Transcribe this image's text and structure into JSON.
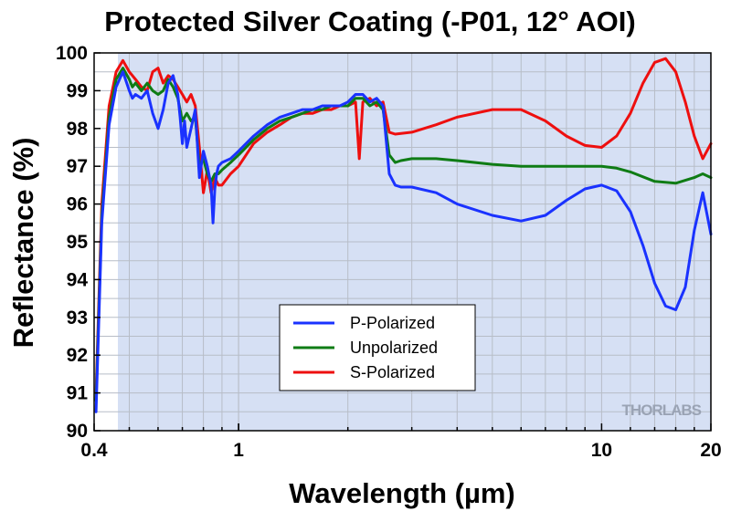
{
  "chart_data": {
    "type": "line",
    "title": "Protected Silver Coating (-P01, 12° AOI)",
    "xlabel": "Wavelength (µm)",
    "ylabel": "Reflectance (%)",
    "x_scale": "log",
    "xlim": [
      0.4,
      20
    ],
    "ylim": [
      90,
      100
    ],
    "x_tick_labels": [
      "0.4",
      "1",
      "10",
      "20"
    ],
    "x_tick_values": [
      0.4,
      1,
      10,
      20
    ],
    "y_tick_labels": [
      "90",
      "91",
      "92",
      "93",
      "94",
      "95",
      "96",
      "97",
      "98",
      "99",
      "100"
    ],
    "y_tick_values": [
      90,
      91,
      92,
      93,
      94,
      95,
      96,
      97,
      98,
      99,
      100
    ],
    "grid": true,
    "legend_position": "lower-center",
    "background_color": "#d6e0f4",
    "watermark": "THORLABS",
    "series": [
      {
        "name": "P-Polarized",
        "color": "#1a32ff",
        "x": [
          0.405,
          0.42,
          0.44,
          0.46,
          0.48,
          0.5,
          0.51,
          0.52,
          0.54,
          0.56,
          0.58,
          0.6,
          0.62,
          0.64,
          0.66,
          0.68,
          0.69,
          0.7,
          0.71,
          0.72,
          0.74,
          0.76,
          0.78,
          0.8,
          0.82,
          0.84,
          0.85,
          0.86,
          0.87,
          0.88,
          0.9,
          0.95,
          1.0,
          1.1,
          1.2,
          1.3,
          1.4,
          1.5,
          1.6,
          1.7,
          1.8,
          1.9,
          2.0,
          2.1,
          2.2,
          2.3,
          2.4,
          2.5,
          2.6,
          2.7,
          2.8,
          2.9,
          3.0,
          3.5,
          4.0,
          5.0,
          6.0,
          7.0,
          8.0,
          9.0,
          10.0,
          11.0,
          12.0,
          13.0,
          14.0,
          15.0,
          16.0,
          17.0,
          18.0,
          19.0,
          20.0
        ],
        "y": [
          90.5,
          95.5,
          98.1,
          99.1,
          99.5,
          99.0,
          98.8,
          98.9,
          98.8,
          99.0,
          98.4,
          98.0,
          98.5,
          99.2,
          99.4,
          98.9,
          98.3,
          97.6,
          98.2,
          97.5,
          98.0,
          98.5,
          96.7,
          97.4,
          97.0,
          96.5,
          95.5,
          96.4,
          96.8,
          97.0,
          97.1,
          97.2,
          97.4,
          97.8,
          98.1,
          98.3,
          98.4,
          98.5,
          98.5,
          98.6,
          98.6,
          98.6,
          98.7,
          98.9,
          98.9,
          98.7,
          98.8,
          98.6,
          96.8,
          96.5,
          96.45,
          96.45,
          96.45,
          96.3,
          96.0,
          95.7,
          95.55,
          95.7,
          96.1,
          96.4,
          96.5,
          96.35,
          95.8,
          94.9,
          93.9,
          93.3,
          93.2,
          93.8,
          95.3,
          96.3,
          95.2
        ]
      },
      {
        "name": "Unpolarized",
        "color": "#0f7c15",
        "x": [
          0.405,
          0.42,
          0.44,
          0.46,
          0.48,
          0.5,
          0.51,
          0.52,
          0.54,
          0.56,
          0.58,
          0.6,
          0.62,
          0.64,
          0.66,
          0.68,
          0.7,
          0.72,
          0.74,
          0.76,
          0.78,
          0.8,
          0.82,
          0.84,
          0.86,
          0.88,
          0.9,
          0.95,
          1.0,
          1.1,
          1.2,
          1.3,
          1.4,
          1.5,
          1.6,
          1.7,
          1.8,
          1.9,
          2.0,
          2.1,
          2.2,
          2.3,
          2.4,
          2.5,
          2.6,
          2.7,
          2.8,
          3.0,
          3.5,
          4.0,
          5.0,
          6.0,
          7.0,
          8.0,
          10.0,
          11.0,
          12.0,
          14.0,
          16.0,
          18.0,
          19.0,
          20.0
        ],
        "y": [
          90.8,
          95.7,
          98.3,
          99.3,
          99.6,
          99.3,
          99.1,
          99.2,
          99.0,
          99.2,
          99.0,
          98.9,
          99.0,
          99.3,
          99.1,
          98.8,
          98.2,
          98.4,
          98.2,
          98.3,
          97.0,
          97.2,
          96.8,
          96.6,
          96.8,
          96.8,
          96.9,
          97.1,
          97.3,
          97.7,
          98.0,
          98.2,
          98.3,
          98.4,
          98.5,
          98.5,
          98.6,
          98.6,
          98.6,
          98.8,
          98.8,
          98.6,
          98.7,
          98.5,
          97.3,
          97.1,
          97.15,
          97.2,
          97.2,
          97.15,
          97.05,
          97.0,
          97.0,
          97.0,
          97.0,
          96.95,
          96.85,
          96.6,
          96.55,
          96.7,
          96.8,
          96.7
        ]
      },
      {
        "name": "S-Polarized",
        "color": "#ee0f0f",
        "x": [
          0.405,
          0.42,
          0.44,
          0.46,
          0.48,
          0.5,
          0.51,
          0.52,
          0.54,
          0.56,
          0.58,
          0.6,
          0.62,
          0.64,
          0.66,
          0.68,
          0.7,
          0.72,
          0.74,
          0.76,
          0.78,
          0.8,
          0.82,
          0.84,
          0.86,
          0.88,
          0.9,
          0.95,
          1.0,
          1.1,
          1.2,
          1.3,
          1.4,
          1.5,
          1.6,
          1.7,
          1.8,
          1.9,
          2.0,
          2.1,
          2.15,
          2.2,
          2.3,
          2.4,
          2.5,
          2.6,
          2.7,
          3.0,
          3.5,
          4.0,
          5.0,
          6.0,
          7.0,
          8.0,
          9.0,
          10.0,
          11.0,
          12.0,
          13.0,
          14.0,
          15.0,
          16.0,
          17.0,
          18.0,
          19.0,
          20.0
        ],
        "y": [
          91.0,
          96.0,
          98.6,
          99.5,
          99.8,
          99.5,
          99.4,
          99.3,
          99.1,
          99.0,
          99.5,
          99.6,
          99.2,
          99.4,
          99.3,
          99.1,
          98.9,
          98.7,
          98.9,
          98.6,
          97.5,
          96.3,
          96.9,
          96.3,
          96.7,
          96.5,
          96.5,
          96.8,
          97.0,
          97.6,
          97.9,
          98.1,
          98.3,
          98.4,
          98.4,
          98.5,
          98.5,
          98.6,
          98.6,
          98.7,
          97.2,
          98.7,
          98.8,
          98.6,
          98.7,
          97.9,
          97.85,
          97.9,
          98.1,
          98.3,
          98.5,
          98.5,
          98.2,
          97.8,
          97.55,
          97.5,
          97.8,
          98.4,
          99.2,
          99.75,
          99.85,
          99.5,
          98.7,
          97.8,
          97.2,
          97.6
        ]
      }
    ]
  }
}
